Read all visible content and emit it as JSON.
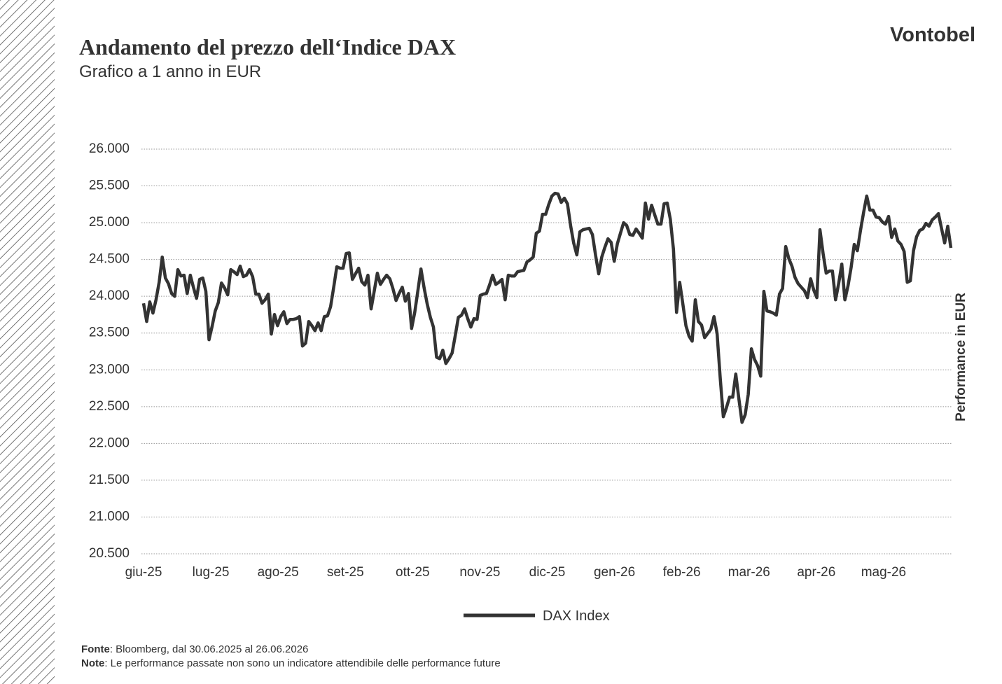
{
  "logo": "Vontobel",
  "chart_data": {
    "type": "line",
    "title": "Andamento del prezzo dell‘Indice DAX",
    "subtitle": "Grafico a 1 anno in EUR",
    "y_label": "Performance in EUR",
    "xtick_labels": [
      "giu-25",
      "lug-25",
      "ago-25",
      "set-25",
      "ott-25",
      "nov-25",
      "dic-25",
      "gen-26",
      "feb-26",
      "mar-26",
      "apr-26",
      "mag-26"
    ],
    "ylim": [
      20500,
      26000
    ],
    "yticks": [
      {
        "value": 20500,
        "label": "20.500"
      },
      {
        "value": 21000,
        "label": "21.000"
      },
      {
        "value": 21500,
        "label": "21.500"
      },
      {
        "value": 22000,
        "label": "22.000"
      },
      {
        "value": 22500,
        "label": "22.500"
      },
      {
        "value": 23000,
        "label": "23.000"
      },
      {
        "value": 23500,
        "label": "23.500"
      },
      {
        "value": 24000,
        "label": "24.000"
      },
      {
        "value": 24500,
        "label": "24.500"
      },
      {
        "value": 25000,
        "label": "25.000"
      },
      {
        "value": 25500,
        "label": "25.500"
      },
      {
        "value": 26000,
        "label": "26.000"
      }
    ],
    "grid": true,
    "series": [
      {
        "name": "DAX Index",
        "color": "#333333",
        "values": [
          23905,
          23657,
          23924,
          23771,
          23952,
          24190,
          24533,
          24248,
          24171,
          24038,
          24000,
          24362,
          24276,
          24286,
          24038,
          24286,
          24124,
          23971,
          24229,
          24248,
          24067,
          23410,
          23590,
          23800,
          23914,
          24181,
          24114,
          24019,
          24362,
          24333,
          24295,
          24410,
          24267,
          24286,
          24362,
          24267,
          24029,
          24029,
          23905,
          23952,
          24029,
          23486,
          23752,
          23600,
          23724,
          23790,
          23629,
          23686,
          23686,
          23695,
          23724,
          23324,
          23362,
          23657,
          23600,
          23533,
          23638,
          23533,
          23724,
          23733,
          23857,
          24124,
          24400,
          24381,
          24381,
          24581,
          24590,
          24229,
          24305,
          24381,
          24200,
          24152,
          24286,
          23829,
          24067,
          24314,
          24162,
          24229,
          24286,
          24238,
          24105,
          23943,
          24038,
          24124,
          23933,
          24038,
          23562,
          23781,
          24076,
          24371,
          24114,
          23895,
          23714,
          23581,
          23171,
          23152,
          23267,
          23086,
          23152,
          23229,
          23467,
          23714,
          23743,
          23829,
          23695,
          23581,
          23695,
          23686,
          24010,
          24029,
          24038,
          24152,
          24286,
          24162,
          24190,
          24229,
          23952,
          24286,
          24276,
          24276,
          24333,
          24343,
          24352,
          24467,
          24495,
          24533,
          24857,
          24886,
          25114,
          25114,
          25248,
          25362,
          25400,
          25390,
          25276,
          25333,
          25257,
          24962,
          24724,
          24562,
          24876,
          24905,
          24914,
          24924,
          24838,
          24562,
          24305,
          24533,
          24667,
          24781,
          24733,
          24476,
          24714,
          24857,
          25000,
          24962,
          24838,
          24829,
          24914,
          24857,
          24790,
          25267,
          25048,
          25238,
          25105,
          24981,
          24981,
          25257,
          25267,
          25048,
          24638,
          23781,
          24190,
          23895,
          23600,
          23457,
          23390,
          23952,
          23657,
          23610,
          23438,
          23495,
          23552,
          23724,
          23495,
          22886,
          22362,
          22486,
          22629,
          22629,
          22943,
          22600,
          22286,
          22390,
          22667,
          23286,
          23143,
          23057,
          22914,
          24067,
          23800,
          23790,
          23771,
          23743,
          24029,
          24105,
          24676,
          24514,
          24410,
          24257,
          24171,
          24124,
          24076,
          23981,
          24238,
          24086,
          23981,
          24905,
          24581,
          24314,
          24343,
          24343,
          23952,
          24171,
          24438,
          23952,
          24143,
          24390,
          24705,
          24619,
          24895,
          25143,
          25362,
          25171,
          25171,
          25076,
          25067,
          25010,
          24981,
          25086,
          24800,
          24914,
          24752,
          24705,
          24610,
          24190,
          24210,
          24619,
          24810,
          24895,
          24914,
          24990,
          24952,
          25038,
          25076,
          25124,
          24924,
          24724,
          24952,
          24657
        ]
      }
    ]
  },
  "footer": {
    "source_label": "Fonte",
    "source_text": ": Bloomberg, dal 30.06.2025 al 26.06.2026",
    "note_label": "Note",
    "note_text": ": Le performance passate non sono un indicatore attendibile delle performance future"
  }
}
